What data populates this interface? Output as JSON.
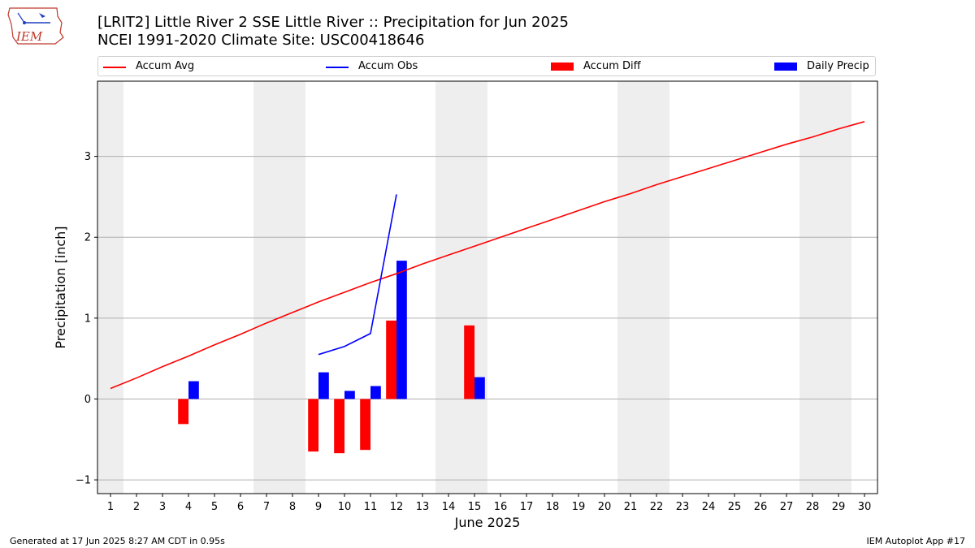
{
  "title_line1": "[LRIT2] Little River 2 SSE Little River :: Precipitation for Jun 2025",
  "title_line2": "NCEI 1991-2020 Climate Site: USC00418646",
  "logo_text": "IEM",
  "footer_left": "Generated at 17 Jun 2025 8:27 AM CDT in 0.95s",
  "footer_right": "IEM Autoplot App #17",
  "colors": {
    "avg": "#ff0000",
    "obs": "#0000ff",
    "diff": "#ff0000",
    "daily": "#0000ff",
    "weekend": "#eeeeee",
    "grid": "#b0b0b0"
  },
  "legend": [
    {
      "label": "Accum Avg",
      "kind": "line",
      "color": "#ff0000"
    },
    {
      "label": "Accum Obs",
      "kind": "line",
      "color": "#0000ff"
    },
    {
      "label": "Accum Diff",
      "kind": "box",
      "color": "#ff0000"
    },
    {
      "label": "Daily Precip",
      "kind": "box",
      "color": "#0000ff"
    }
  ],
  "chart_data": {
    "type": "bar",
    "xlabel": "June 2025",
    "ylabel": "Precipitation [inch]",
    "xlim": [
      0.5,
      30.5
    ],
    "ylim": [
      -1.17,
      3.93
    ],
    "x_ticks": [
      1,
      2,
      3,
      4,
      5,
      6,
      7,
      8,
      9,
      10,
      11,
      12,
      13,
      14,
      15,
      16,
      17,
      18,
      19,
      20,
      21,
      22,
      23,
      24,
      25,
      26,
      27,
      28,
      29,
      30
    ],
    "y_ticks": [
      -1,
      0,
      1,
      2,
      3
    ],
    "grid": "horizontal",
    "legend_position": "top",
    "shaded_days": [
      1,
      7,
      8,
      14,
      15,
      21,
      22,
      28,
      29
    ],
    "series": [
      {
        "name": "Accum Avg",
        "type": "line",
        "x": [
          1,
          2,
          3,
          4,
          5,
          6,
          7,
          8,
          9,
          10,
          11,
          12,
          13,
          14,
          15,
          16,
          17,
          18,
          19,
          20,
          21,
          22,
          23,
          24,
          25,
          26,
          27,
          28,
          29,
          30
        ],
        "values": [
          0.13,
          0.26,
          0.4,
          0.53,
          0.67,
          0.8,
          0.94,
          1.07,
          1.2,
          1.32,
          1.44,
          1.55,
          1.67,
          1.78,
          1.89,
          2.0,
          2.11,
          2.22,
          2.33,
          2.44,
          2.54,
          2.65,
          2.75,
          2.85,
          2.95,
          3.05,
          3.15,
          3.24,
          3.34,
          3.43
        ]
      },
      {
        "name": "Accum Obs",
        "type": "line",
        "x": [
          9,
          10,
          11,
          12
        ],
        "values": [
          0.55,
          0.65,
          0.81,
          2.53
        ]
      },
      {
        "name": "Accum Diff",
        "type": "bar",
        "x": [
          4,
          9,
          10,
          11,
          12,
          15
        ],
        "values": [
          -0.31,
          -0.65,
          -0.67,
          -0.63,
          0.97,
          0.91
        ]
      },
      {
        "name": "Daily Precip",
        "type": "bar",
        "x": [
          4,
          9,
          10,
          11,
          12,
          15
        ],
        "values": [
          0.22,
          0.33,
          0.1,
          0.16,
          1.71,
          0.27
        ]
      }
    ]
  }
}
